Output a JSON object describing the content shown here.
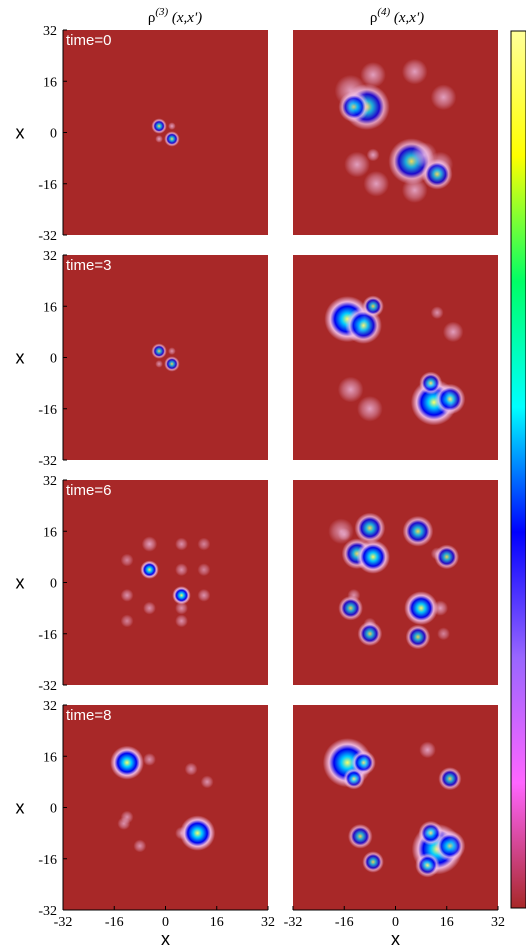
{
  "chart_data": {
    "type": "heatmap",
    "columns": [
      {
        "symbol": "ρ",
        "superscript": "(3)",
        "args": " (x,x')"
      },
      {
        "symbol": "ρ",
        "superscript": "(4)",
        "args": " (x,x')"
      }
    ],
    "rows": [
      {
        "label": "time=0"
      },
      {
        "label": "time=3"
      },
      {
        "label": "time=6"
      },
      {
        "label": "time=8"
      }
    ],
    "xlabel": "x",
    "ylabel": "x",
    "xlim": [
      -32,
      32
    ],
    "ylim": [
      -32,
      32
    ],
    "xticks": [
      -32,
      -16,
      0,
      16,
      32
    ],
    "xtick_labels": [
      "-32",
      "-16",
      "0",
      "16",
      "32"
    ],
    "yticks": [
      32,
      16,
      0,
      -16,
      -32
    ],
    "ytick_labels": [
      "32",
      "16",
      "0",
      "-16",
      "-32"
    ],
    "colorbar": {
      "colors": [
        "#ffff99",
        "#ffff00",
        "#00ff66",
        "#00ffff",
        "#0000ff",
        "#9966ff",
        "#ff66ff",
        "#a82828"
      ],
      "tick_labels": []
    },
    "background_color": "#a82828",
    "blob_colors": {
      "halo": "#f3c3ec",
      "rim": "#0000ee",
      "mid": "#00ccff",
      "core": "#ffff66"
    },
    "blobs": [
      [
        [
          [
            -2,
            2,
            1,
            0.6
          ],
          [
            2,
            2,
            0.6,
            0.4
          ],
          [
            -2,
            -2,
            0.6,
            0.4
          ],
          [
            2,
            -2,
            1,
            0.6
          ]
        ],
        [
          [
            -2,
            2,
            1,
            0.5
          ],
          [
            2,
            2,
            0.6,
            0.3
          ],
          [
            -2,
            -2,
            0.6,
            0.3
          ],
          [
            2,
            -2,
            1,
            0.5
          ]
        ],
        [
          [
            -12,
            7,
            1,
            0.2
          ],
          [
            -5,
            4,
            1.2,
            0.9
          ],
          [
            -5,
            12,
            1.2,
            0.4
          ],
          [
            -12,
            -12,
            1,
            0.2
          ],
          [
            -12,
            -4,
            1,
            0.3
          ],
          [
            -5,
            -8,
            1,
            0.3
          ],
          [
            5,
            12,
            1,
            0.3
          ],
          [
            5,
            4,
            1,
            0.3
          ],
          [
            12,
            4,
            1,
            0.2
          ],
          [
            12,
            -4,
            1,
            0.3
          ],
          [
            5,
            -4,
            1.2,
            0.9
          ],
          [
            5,
            -12,
            1,
            0.3
          ],
          [
            12,
            12,
            1,
            0.2
          ],
          [
            5,
            -8,
            1,
            0.3
          ]
        ],
        [
          [
            -12,
            14,
            2.2,
            1
          ],
          [
            -5,
            15,
            1,
            0.3
          ],
          [
            -12,
            -3,
            1,
            0.3
          ],
          [
            -8,
            -12,
            1,
            0.3
          ],
          [
            8,
            12,
            1,
            0.3
          ],
          [
            13,
            8,
            1,
            0.3
          ],
          [
            5,
            -8,
            1,
            0.3
          ],
          [
            10,
            -8,
            2.3,
            1
          ],
          [
            -13,
            -5,
            1,
            0.3
          ]
        ]
      ],
      [
        [
          [
            -9,
            8,
            3,
            0.6
          ],
          [
            -14,
            13,
            2.5,
            0.4
          ],
          [
            -7,
            18,
            2,
            0.4
          ],
          [
            -12,
            -10,
            2,
            0.4
          ],
          [
            -6,
            -16,
            2,
            0.4
          ],
          [
            -13,
            8,
            2,
            0.5
          ],
          [
            6,
            -18,
            2,
            0.4
          ],
          [
            14,
            -10,
            2,
            0.4
          ],
          [
            6,
            19,
            2,
            0.4
          ],
          [
            15,
            11,
            2,
            0.4
          ],
          [
            5,
            -9,
            3,
            0.6
          ],
          [
            13,
            -13,
            2,
            0.5
          ],
          [
            -7,
            -7,
            1,
            0.4
          ],
          [
            9,
            -7,
            2,
            0.4
          ]
        ],
        [
          [
            -15,
            12,
            3,
            1
          ],
          [
            -10,
            10,
            2.4,
            0.7
          ],
          [
            -7,
            16,
            1.4,
            0.5
          ],
          [
            -14,
            -10,
            2,
            0.4
          ],
          [
            -8,
            -16,
            2,
            0.4
          ],
          [
            13,
            14,
            1,
            0.3
          ],
          [
            18,
            8,
            1.6,
            0.4
          ],
          [
            12,
            -14,
            3,
            1
          ],
          [
            17,
            -13,
            2,
            0.6
          ],
          [
            11,
            -8,
            1.5,
            0.5
          ]
        ],
        [
          [
            -17,
            16,
            2,
            0.3
          ],
          [
            -8,
            17,
            2,
            0.6
          ],
          [
            -13,
            -4,
            1,
            0.3
          ],
          [
            -8,
            -13,
            1,
            0.3
          ],
          [
            7,
            16,
            2,
            0.6
          ],
          [
            13,
            9,
            1,
            0.3
          ],
          [
            8,
            -8,
            2.2,
            0.9
          ],
          [
            14,
            -8,
            1.2,
            0.4
          ],
          [
            7,
            -17,
            1.6,
            0.5
          ],
          [
            -12,
            9,
            2,
            0.6
          ],
          [
            -7,
            8,
            2.2,
            0.9
          ],
          [
            -14,
            -8,
            1.6,
            0.5
          ],
          [
            -8,
            -16,
            1.6,
            0.5
          ],
          [
            16,
            8,
            1.6,
            0.5
          ],
          [
            15,
            -16,
            1,
            0.2
          ],
          [
            -16,
            15,
            1,
            0.2
          ]
        ],
        [
          [
            -15,
            14,
            3.2,
            1
          ],
          [
            -10,
            14,
            1.6,
            0.6
          ],
          [
            -13,
            9,
            1.4,
            0.5
          ],
          [
            -11,
            -9,
            1.6,
            0.5
          ],
          [
            -7,
            -17,
            1.4,
            0.5
          ],
          [
            10,
            18,
            1.3,
            0.4
          ],
          [
            17,
            9,
            1.5,
            0.5
          ],
          [
            13,
            -13,
            3.3,
            1
          ],
          [
            17,
            -12,
            2,
            0.6
          ],
          [
            11,
            -8,
            1.6,
            0.5
          ],
          [
            10,
            -18,
            1.6,
            0.5
          ]
        ]
      ]
    ]
  }
}
